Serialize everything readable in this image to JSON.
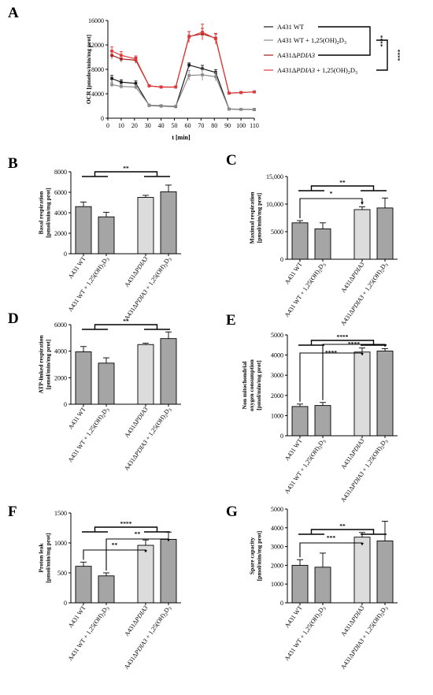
{
  "colors": {
    "wt": "#1a1a1a",
    "wt_vd": "#8a8a8a",
    "ko": "#a01c1c",
    "ko_vd": "#e0393b",
    "bar_dark": "#a5a5a5",
    "bar_light": "#dcdcdc"
  },
  "chart_data": [
    {
      "id": "A",
      "panel_label": "A",
      "type": "line",
      "ylabel": "OCR [pmoles/min/mg prot]",
      "xlabel": "t [min]",
      "xlim": [
        0,
        110
      ],
      "ylim": [
        0,
        16000
      ],
      "xticks": [
        "0",
        "10",
        "20",
        "30",
        "40",
        "50",
        "60",
        "70",
        "80",
        "90",
        "100",
        "110"
      ],
      "yticks": [
        "0",
        "4000",
        "8000",
        "12000",
        "16000"
      ],
      "x": [
        3,
        10,
        21,
        31,
        40,
        51,
        61,
        71,
        81,
        91,
        100,
        110
      ],
      "series": [
        {
          "name": "A431 WT",
          "values": [
            6500,
            5900,
            5700,
            2100,
            2000,
            1900,
            8700,
            8100,
            7500,
            1500,
            1450,
            1420
          ]
        },
        {
          "name": "A431 WT + 1,25(OH)2D3",
          "values": [
            5500,
            5200,
            5100,
            2150,
            2050,
            1950,
            7000,
            7100,
            6800,
            1500,
            1450,
            1420
          ]
        },
        {
          "name": "A431ΔPDIA3",
          "values": [
            10300,
            9700,
            9500,
            5300,
            5100,
            5100,
            13400,
            13800,
            13100,
            4100,
            4200,
            4300
          ]
        },
        {
          "name": "A431ΔPDIA3 + 1,25(OH)2D3",
          "values": [
            11000,
            10300,
            9700,
            5300,
            5100,
            5100,
            13300,
            14100,
            13000,
            4100,
            4200,
            4300
          ]
        }
      ],
      "errors": [
        [
          500,
          400,
          400,
          150,
          150,
          150,
          350,
          550,
          450,
          100,
          100,
          100
        ],
        [
          400,
          350,
          350,
          150,
          150,
          150,
          800,
          900,
          700,
          100,
          100,
          100
        ],
        [
          600,
          500,
          500,
          200,
          200,
          200,
          800,
          900,
          700,
          150,
          150,
          150
        ],
        [
          700,
          600,
          500,
          200,
          200,
          200,
          900,
          1300,
          900,
          150,
          150,
          150
        ]
      ],
      "significance": [
        "****",
        "****"
      ]
    },
    {
      "id": "B",
      "panel_label": "B",
      "type": "bar",
      "ylabel": [
        "Basal respiration",
        "[pmol/min/mg prot]"
      ],
      "ylim": [
        0,
        8000
      ],
      "yticks": [
        "0",
        "2000",
        "4000",
        "6000",
        "8000"
      ],
      "categories": [
        "A431 WT",
        "A431 WT + 1,25(OH)2D3",
        "A431ΔPDIA3",
        "A431ΔPDIA3 + 1,25(OH)2D3"
      ],
      "values": [
        4600,
        3600,
        5500,
        6050
      ],
      "errors": [
        450,
        450,
        200,
        650
      ],
      "significance": [
        "**"
      ]
    },
    {
      "id": "C",
      "panel_label": "C",
      "type": "bar",
      "ylabel": [
        "Maximal respiration",
        "[pmol/min/mg prot]"
      ],
      "ylim": [
        0,
        15000
      ],
      "yticks": [
        "0",
        "5000",
        "10,000",
        "15,000"
      ],
      "categories": [
        "A431 WT",
        "A431 WT + 1,25(OH)2D3",
        "A431ΔPDIA3",
        "A431ΔPDIA3 + 1,25(OH)2D3"
      ],
      "values": [
        6600,
        5500,
        9000,
        9300
      ],
      "errors": [
        400,
        1100,
        500,
        1800
      ],
      "significance": [
        "**",
        "*"
      ]
    },
    {
      "id": "D",
      "panel_label": "D",
      "type": "bar",
      "ylabel": [
        "ATP-linked respiration",
        "[pmol/min/mg prot]"
      ],
      "ylim": [
        0,
        6000
      ],
      "yticks": [
        "0",
        "2000",
        "4000",
        "6000"
      ],
      "categories": [
        "A431 WT",
        "A431 WT + 1,25(OH)2D3",
        "A431ΔPDIA3",
        "A431ΔPDIA3 + 1,25(OH)2D3"
      ],
      "values": [
        3950,
        3100,
        4500,
        4950
      ],
      "errors": [
        400,
        400,
        100,
        500
      ],
      "significance": [
        "**"
      ]
    },
    {
      "id": "E",
      "panel_label": "E",
      "type": "bar",
      "ylabel": [
        "Non mitochondrial",
        "oxygen consumption",
        "[pmol/min/mg prot]"
      ],
      "ylim": [
        0,
        5000
      ],
      "yticks": [
        "0",
        "1000",
        "2000",
        "3000",
        "4000",
        "5000"
      ],
      "categories": [
        "A431 WT",
        "A431 WT + 1,25(OH)2D3",
        "A431ΔPDIA3",
        "A431ΔPDIA3 + 1,25(OH)2D3"
      ],
      "values": [
        1450,
        1500,
        4150,
        4200
      ],
      "errors": [
        120,
        150,
        200,
        120
      ],
      "significance": [
        "****",
        "****",
        "****"
      ]
    },
    {
      "id": "F",
      "panel_label": "F",
      "type": "bar",
      "ylabel": [
        "Proton leak",
        "[pmol/min/mg prot]"
      ],
      "ylim": [
        0,
        1500
      ],
      "yticks": [
        "0",
        "500",
        "1000",
        "1500"
      ],
      "categories": [
        "A431 WT",
        "A431 WT + 1,25(OH)2D3",
        "A431ΔPDIA3",
        "A431ΔPDIA3 + 1,25(OH)2D3"
      ],
      "values": [
        610,
        450,
        960,
        1060
      ],
      "errors": [
        70,
        50,
        90,
        120
      ],
      "significance": [
        "****",
        "**",
        "**"
      ]
    },
    {
      "id": "G",
      "panel_label": "G",
      "type": "bar",
      "ylabel": [
        "Spare capacity",
        "[pmol/min/mg prot]"
      ],
      "ylim": [
        0,
        5000
      ],
      "yticks": [
        "0",
        "1000",
        "2000",
        "3000",
        "4000",
        "5000"
      ],
      "categories": [
        "A431 WT",
        "A431 WT + 1,25(OH)2D3",
        "A431ΔPDIA3",
        "A431ΔPDIA3 + 1,25(OH)2D3"
      ],
      "values": [
        2000,
        1900,
        3500,
        3300
      ],
      "errors": [
        300,
        750,
        250,
        1050
      ],
      "significance": [
        "**",
        "***"
      ]
    }
  ]
}
